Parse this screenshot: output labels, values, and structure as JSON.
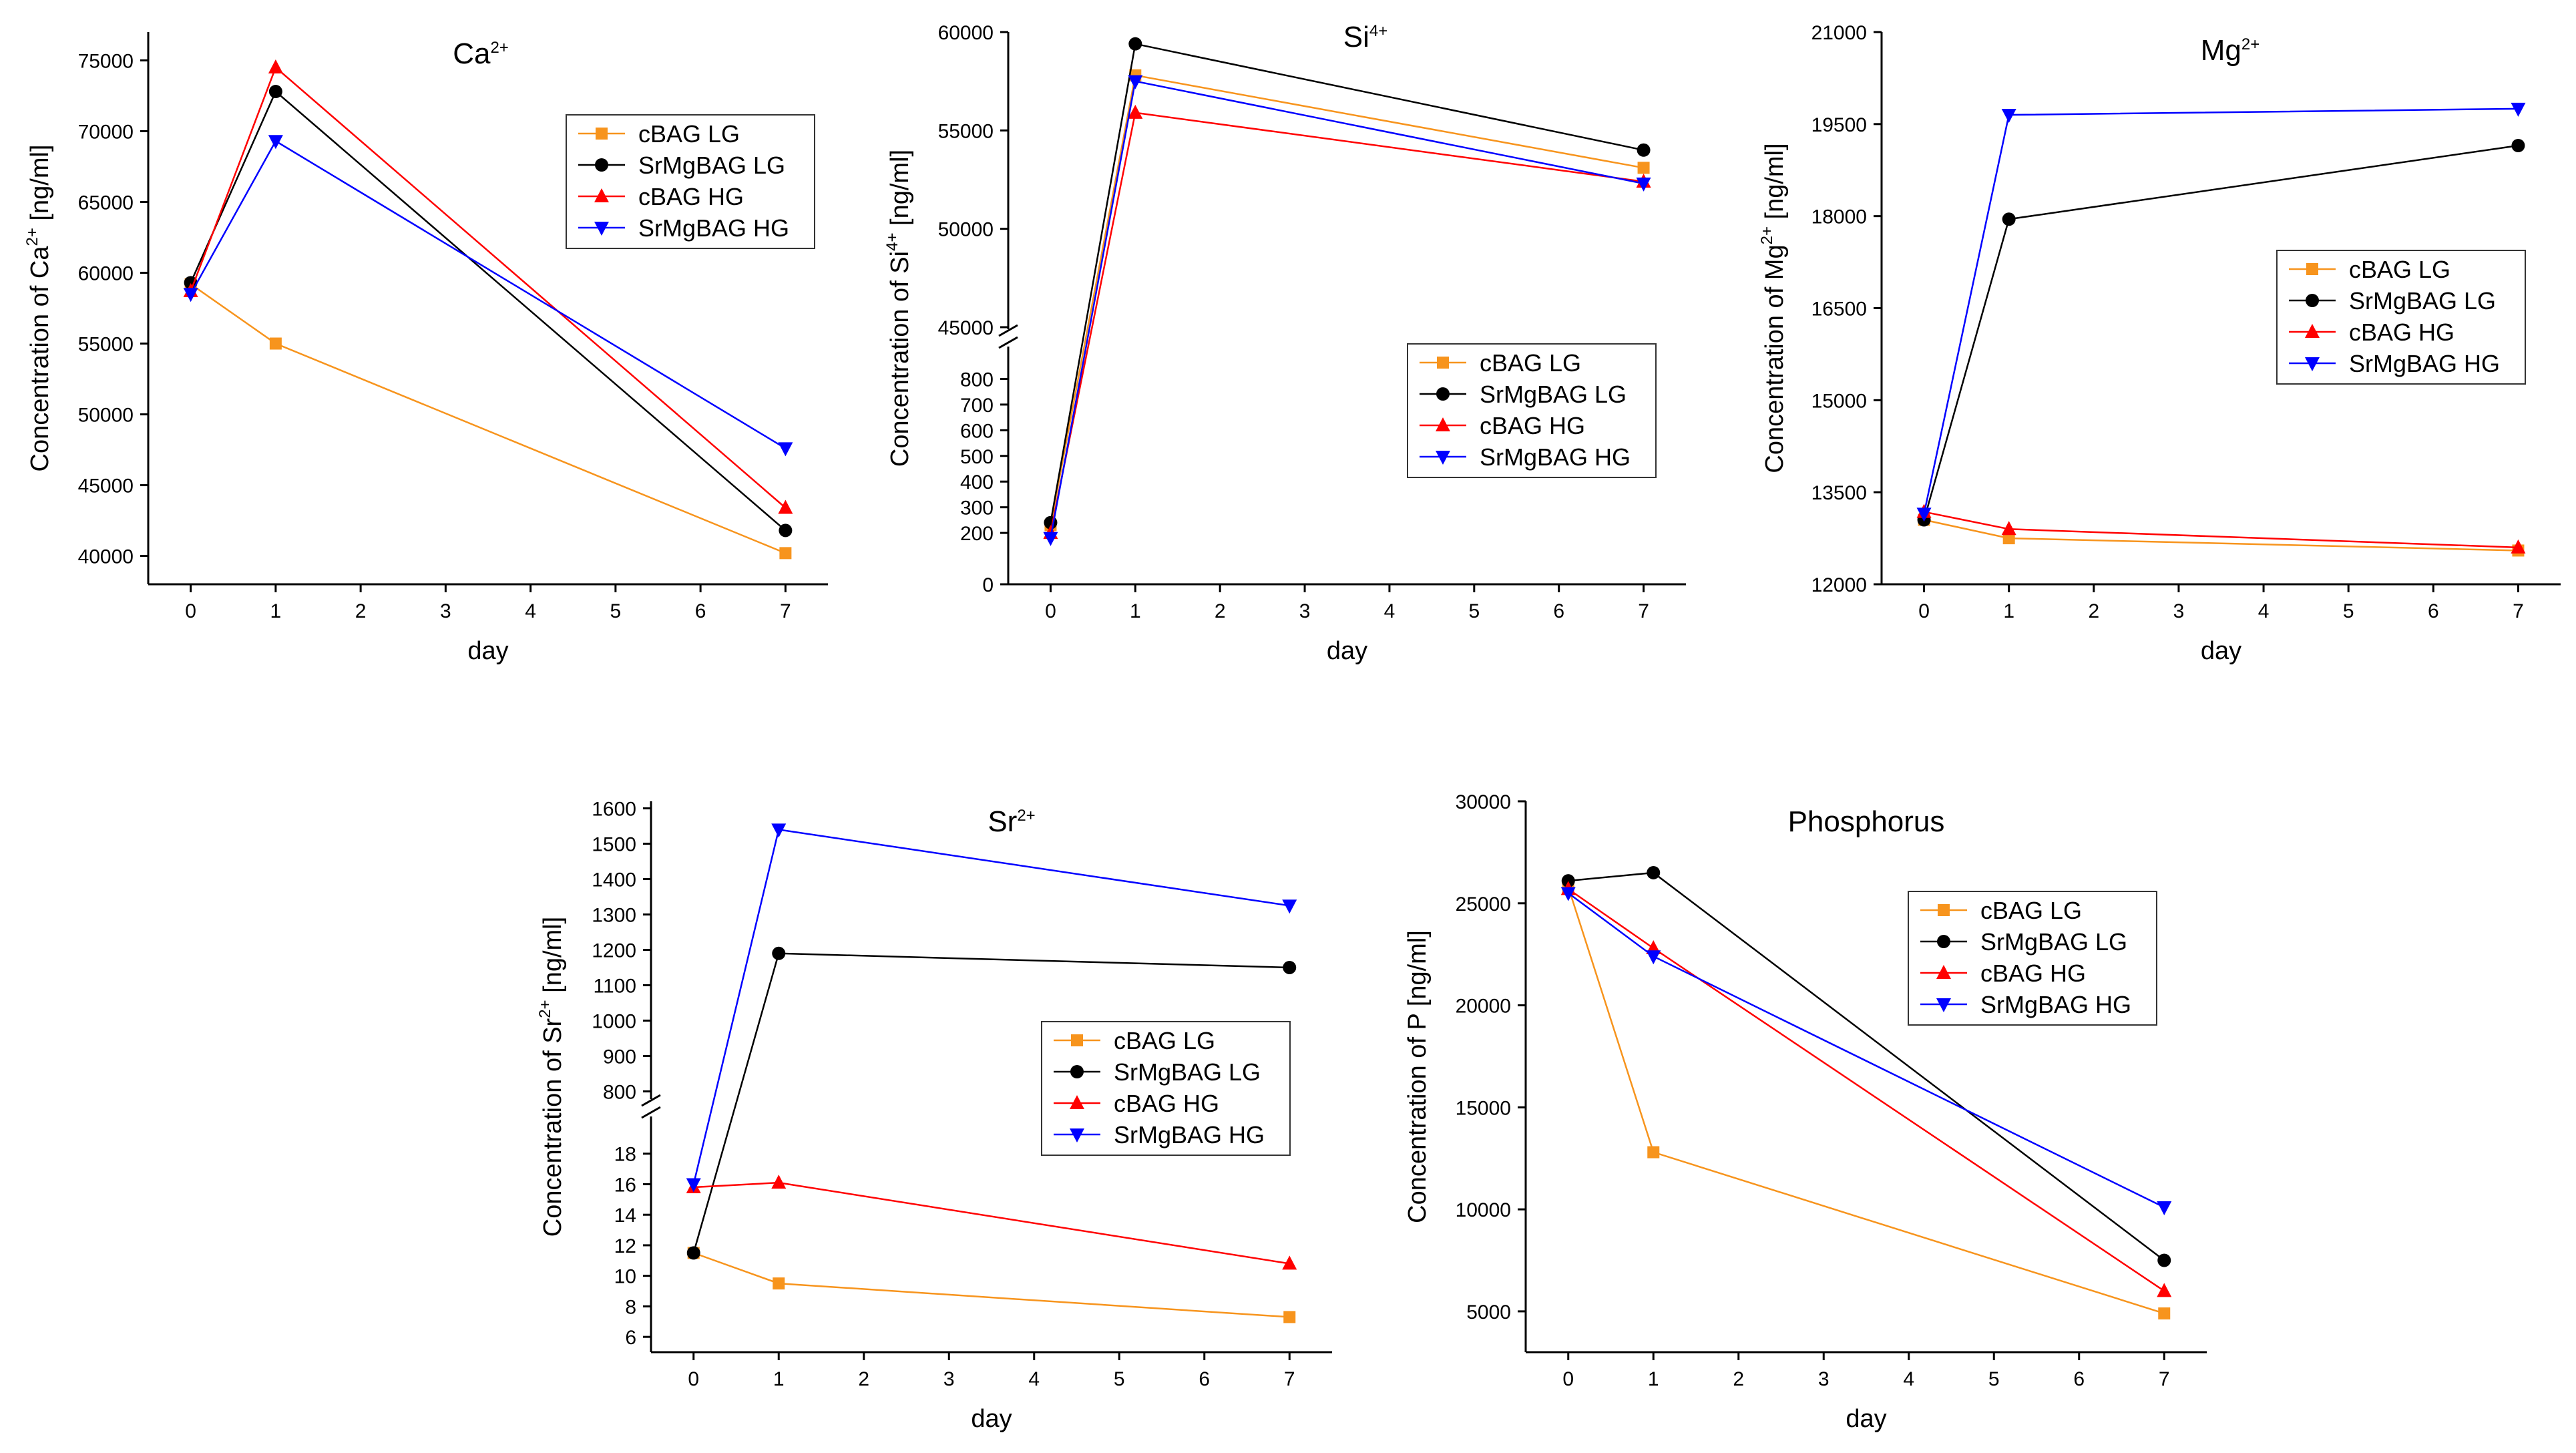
{
  "figure_title": "",
  "colors": {
    "cBAG LG": "#f7941d",
    "SrMgBAG LG": "#000000",
    "cBAG HG": "#ff0000",
    "SrMgBAG HG": "#0000ff"
  },
  "markers": {
    "cBAG LG": "square",
    "SrMgBAG LG": "circle",
    "cBAG HG": "triangle-up",
    "SrMgBAG HG": "triangle-down"
  },
  "chart_data": [
    {
      "id": "ca",
      "type": "line",
      "title": "Ca",
      "title_sup": "2+",
      "xlabel": "day",
      "ylabel": "Concentration of Ca",
      "ylabel_sup": "2+",
      "ylabel_unit": " [ng/ml]",
      "x": [
        0,
        1,
        7
      ],
      "xlim": [
        -0.5,
        7.5
      ],
      "xticks": [
        0,
        1,
        2,
        3,
        4,
        5,
        6,
        7
      ],
      "ylim": [
        38000,
        77000
      ],
      "yticks": [
        40000,
        45000,
        50000,
        55000,
        60000,
        65000,
        70000,
        75000
      ],
      "legend_position": "top-right",
      "series": [
        {
          "name": "cBAG LG",
          "values": [
            59200,
            55000,
            40200
          ]
        },
        {
          "name": "SrMgBAG LG",
          "values": [
            59300,
            72800,
            41800
          ]
        },
        {
          "name": "cBAG HG",
          "values": [
            58700,
            74500,
            43400
          ]
        },
        {
          "name": "SrMgBAG HG",
          "values": [
            58500,
            69300,
            47600
          ]
        }
      ]
    },
    {
      "id": "si",
      "type": "line",
      "title": "Si",
      "title_sup": "4+",
      "xlabel": "day",
      "ylabel": "Concentration of Si",
      "ylabel_sup": "4+",
      "ylabel_unit": " [ng/ml]",
      "x": [
        0,
        1,
        7
      ],
      "xlim": [
        -0.5,
        7.5
      ],
      "xticks": [
        0,
        1,
        2,
        3,
        4,
        5,
        6,
        7
      ],
      "broken_axis": true,
      "ylim_lower": [
        0,
        900
      ],
      "yticks_lower": [
        0,
        200,
        300,
        400,
        500,
        600,
        700,
        800
      ],
      "yticks_lower_shown": [
        0,
        200,
        300,
        400,
        500,
        600,
        700,
        800
      ],
      "ylim_upper": [
        45000,
        60000
      ],
      "yticks_upper": [
        45000,
        50000,
        55000,
        60000
      ],
      "legend_position": "center-right",
      "series": [
        {
          "name": "cBAG LG",
          "values": [
            230,
            57800,
            53100
          ]
        },
        {
          "name": "SrMgBAG LG",
          "values": [
            240,
            59400,
            54000
          ]
        },
        {
          "name": "cBAG HG",
          "values": [
            200,
            55900,
            52400
          ]
        },
        {
          "name": "SrMgBAG HG",
          "values": [
            180,
            57500,
            52300
          ]
        }
      ]
    },
    {
      "id": "mg",
      "type": "line",
      "title": "Mg",
      "title_sup": "2+",
      "xlabel": "day",
      "ylabel": "Concentration of Mg",
      "ylabel_sup": "2+",
      "ylabel_unit": " [ng/ml]",
      "x": [
        0,
        1,
        7
      ],
      "xlim": [
        -0.5,
        7.5
      ],
      "xticks": [
        0,
        1,
        2,
        3,
        4,
        5,
        6,
        7
      ],
      "ylim": [
        12000,
        21000
      ],
      "yticks": [
        12000,
        13500,
        15000,
        16500,
        18000,
        19500,
        21000
      ],
      "legend_position": "center-right",
      "series": [
        {
          "name": "cBAG LG",
          "values": [
            13050,
            12750,
            12550
          ]
        },
        {
          "name": "SrMgBAG LG",
          "values": [
            13050,
            17950,
            19150
          ]
        },
        {
          "name": "cBAG HG",
          "values": [
            13180,
            12900,
            12600
          ]
        },
        {
          "name": "SrMgBAG HG",
          "values": [
            13150,
            19650,
            19750
          ]
        }
      ]
    },
    {
      "id": "sr",
      "type": "line",
      "title": "Sr",
      "title_sup": "2+",
      "xlabel": "day",
      "ylabel": "Concentration of Sr",
      "ylabel_sup": "2+",
      "ylabel_unit": " [ng/ml]",
      "x": [
        0,
        1,
        7
      ],
      "xlim": [
        -0.5,
        7.5
      ],
      "xticks": [
        0,
        1,
        2,
        3,
        4,
        5,
        6,
        7
      ],
      "broken_axis": true,
      "ylim_lower": [
        5,
        20
      ],
      "yticks_lower": [
        6,
        8,
        10,
        12,
        14,
        16,
        18
      ],
      "ylim_upper": [
        780,
        1620
      ],
      "yticks_upper": [
        800,
        900,
        1000,
        1100,
        1200,
        1300,
        1400,
        1500,
        1600
      ],
      "legend_position": "center-right",
      "series": [
        {
          "name": "cBAG LG",
          "values": [
            11.5,
            9.5,
            7.3
          ]
        },
        {
          "name": "SrMgBAG LG",
          "values": [
            11.5,
            1190,
            1150
          ]
        },
        {
          "name": "cBAG HG",
          "values": [
            15.8,
            16.1,
            10.8
          ]
        },
        {
          "name": "SrMgBAG HG",
          "values": [
            16.0,
            1540,
            1325
          ]
        }
      ]
    },
    {
      "id": "p",
      "type": "line",
      "title": "Phosphorus",
      "title_sup": "",
      "xlabel": "day",
      "ylabel": "Concentration of P",
      "ylabel_sup": "",
      "ylabel_unit": " [ng/ml]",
      "x": [
        0,
        1,
        7
      ],
      "xlim": [
        -0.5,
        7.5
      ],
      "xticks": [
        0,
        1,
        2,
        3,
        4,
        5,
        6,
        7
      ],
      "ylim": [
        3000,
        30000
      ],
      "yticks": [
        5000,
        10000,
        15000,
        20000,
        25000,
        30000
      ],
      "legend_position": "top-right",
      "series": [
        {
          "name": "cBAG LG",
          "values": [
            25800,
            12800,
            4900
          ]
        },
        {
          "name": "SrMgBAG LG",
          "values": [
            26100,
            26500,
            7500
          ]
        },
        {
          "name": "cBAG HG",
          "values": [
            25700,
            22800,
            6000
          ]
        },
        {
          "name": "SrMgBAG HG",
          "values": [
            25500,
            22400,
            10100
          ]
        }
      ]
    }
  ]
}
